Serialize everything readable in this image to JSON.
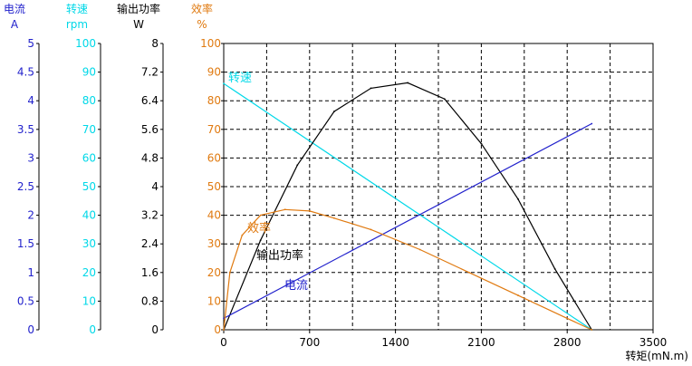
{
  "chart_data": {
    "type": "line",
    "title": "",
    "x": [
      0,
      300,
      600,
      900,
      1200,
      1500,
      1800,
      2100,
      2400,
      2700,
      3000
    ],
    "xlim": [
      0,
      3500
    ],
    "x_ticks": [
      "0",
      "700",
      "1400",
      "2100",
      "2800",
      "3500"
    ],
    "xlabel": "转矩(mN.m)",
    "grid": true,
    "axes": [
      {
        "key": "current",
        "name": "电流",
        "unit": "A",
        "color": "#2222cc",
        "min": 0,
        "max": 5,
        "ticks": [
          "5",
          "4.5",
          "4",
          "3.5",
          "3",
          "2.5",
          "2",
          "1.5",
          "1",
          "0.5",
          "0"
        ]
      },
      {
        "key": "speed",
        "name": "转速",
        "unit": "rpm",
        "color": "#00d8e8",
        "min": 0,
        "max": 100,
        "ticks": [
          "100",
          "90",
          "80",
          "70",
          "60",
          "50",
          "40",
          "30",
          "20",
          "10",
          "0"
        ]
      },
      {
        "key": "power",
        "name": "输出功率",
        "unit": "W",
        "color": "#000000",
        "min": 0,
        "max": 8,
        "ticks": [
          "8",
          "7.2",
          "6.4",
          "5.6",
          "4.8",
          "4",
          "3.2",
          "2.4",
          "1.6",
          "0.8",
          "0"
        ]
      },
      {
        "key": "efficiency",
        "name": "效率",
        "unit": "%",
        "color": "#e07a10",
        "min": 0,
        "max": 100,
        "ticks": [
          "100",
          "90",
          "80",
          "70",
          "60",
          "50",
          "40",
          "30",
          "20",
          "10",
          "0"
        ]
      }
    ],
    "series": [
      {
        "key": "speed",
        "name": "转速",
        "axis": "speed",
        "color": "#00d8e8",
        "x": [
          0,
          3000
        ],
        "values": [
          86,
          0
        ]
      },
      {
        "key": "power",
        "name": "输出功率",
        "axis": "power",
        "color": "#000000",
        "x": [
          0,
          300,
          600,
          900,
          1200,
          1500,
          1800,
          2100,
          2400,
          2700,
          3000
        ],
        "values": [
          0,
          2.5,
          4.6,
          6.1,
          6.75,
          6.9,
          6.45,
          5.2,
          3.65,
          1.7,
          0
        ]
      },
      {
        "key": "current",
        "name": "电流",
        "axis": "current",
        "color": "#2222cc",
        "x": [
          0,
          3000
        ],
        "values": [
          0.2,
          3.6
        ]
      },
      {
        "key": "efficiency",
        "name": "效率",
        "axis": "efficiency",
        "color": "#e07a10",
        "x": [
          0,
          50,
          150,
          300,
          500,
          700,
          900,
          1200,
          1600,
          2000,
          2400,
          2800,
          3000
        ],
        "values": [
          0,
          20,
          33,
          40,
          42,
          41.5,
          39,
          35,
          28,
          20,
          12,
          4,
          0
        ]
      }
    ]
  }
}
